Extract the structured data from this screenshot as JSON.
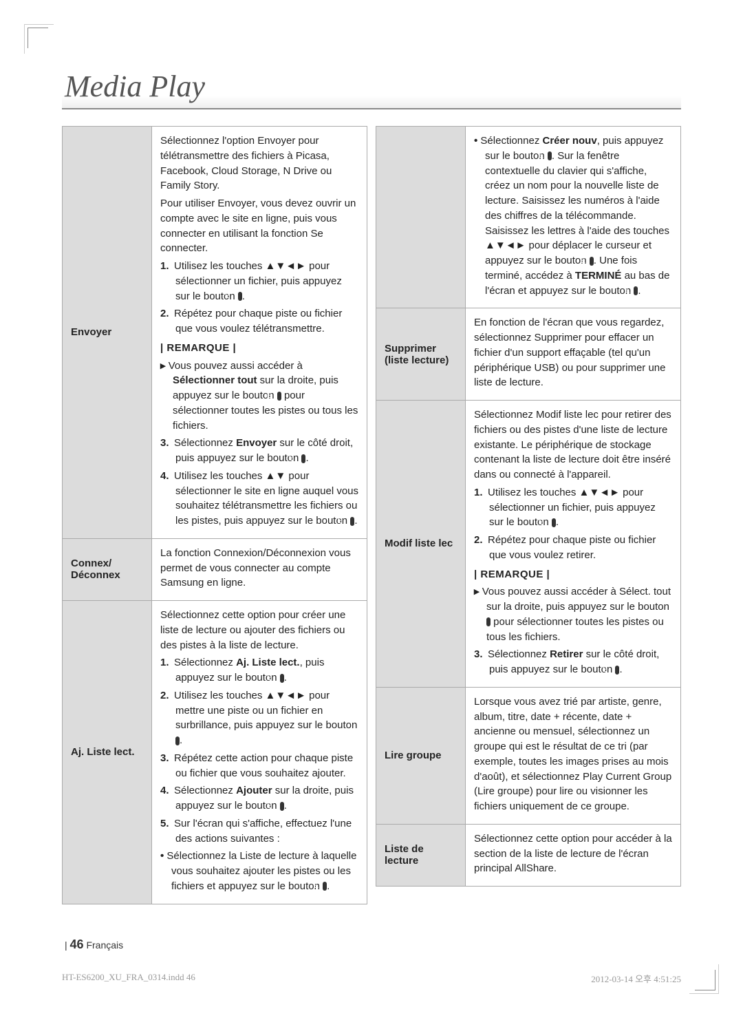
{
  "title": "Media Play",
  "footer": {
    "bar": "|",
    "page": "46",
    "lang": "Français"
  },
  "slug": {
    "file": "HT-ES6200_XU_FRA_0314.indd   46",
    "date": "2012-03-14   오후 4:51:25"
  },
  "labels": {
    "remarque": "| REMARQUE |"
  },
  "left": {
    "envoyer": {
      "label": "Envoyer",
      "p1": "Sélectionnez l'option Envoyer pour télétransmettre des fichiers à Picasa, Facebook, Cloud Storage, N Drive ou Family Story.",
      "p2": "Pour utiliser Envoyer, vous devez ouvrir un compte avec le site en ligne, puis vous connecter en utilisant la fonction Se connecter.",
      "s1a": "Utilisez les touches ▲▼◄► pour sélectionner un fichier, puis appuyez sur le bouton ",
      "s1b": ".",
      "s2": "Répétez pour chaque piste ou fichier que vous voulez télétransmettre.",
      "n1a": "Vous pouvez aussi accéder à ",
      "n1b": "Sélectionner tout",
      "n1c": " sur la droite, puis appuyez sur le bouton ",
      "n1d": " pour sélectionner toutes les pistes ou tous les fichiers.",
      "s3a": "Sélectionnez ",
      "s3b": "Envoyer",
      "s3c": " sur le côté droit, puis appuyez sur le bouton ",
      "s3d": ".",
      "s4a": "Utilisez les touches ▲▼ pour sélectionner le site en ligne auquel vous souhaitez télétransmettre les fichiers ou les pistes, puis appuyez sur le bouton ",
      "s4b": "."
    },
    "connex": {
      "label": "Connex/ Déconnex",
      "p1": "La fonction Connexion/Déconnexion vous permet de vous connecter au compte Samsung en ligne."
    },
    "ajliste": {
      "label": "Aj. Liste lect.",
      "p1": "Sélectionnez cette option pour créer une liste de lecture ou ajouter des fichiers ou des pistes à la liste de lecture.",
      "s1a": "Sélectionnez ",
      "s1b": "Aj. Liste lect.",
      "s1c": ", puis appuyez sur le bouton ",
      "s1d": ".",
      "s2a": "Utilisez les touches ▲▼◄► pour mettre une piste ou un fichier en surbrillance, puis appuyez sur le bouton ",
      "s2b": ".",
      "s3": "Répétez cette action pour chaque piste ou fichier que vous souhaitez ajouter.",
      "s4a": "Sélectionnez ",
      "s4b": "Ajouter",
      "s4c": " sur la droite, puis appuyez sur le bouton ",
      "s4d": ".",
      "s5": "Sur l'écran qui s'affiche, effectuez l'une des actions suivantes :",
      "b1a": "Sélectionnez la Liste de lecture à laquelle vous souhaitez ajouter les pistes ou les fichiers et appuyez sur le bouton ",
      "b1b": "."
    }
  },
  "right": {
    "creer": {
      "b1a": "Sélectionnez ",
      "b1b": "Créer nouv",
      "b1c": ", puis appuyez sur le bouton ",
      "b1d": ". Sur la fenêtre contextuelle du clavier qui s'affiche, créez un nom pour la nouvelle liste de lecture. Saisissez les numéros à l'aide des chiffres de la télécommande.  Saisissez les lettres à l'aide des touches ▲▼◄► pour déplacer le curseur et appuyez sur le bouton ",
      "b1e": ". Une fois terminé, accédez à ",
      "b1f": "TERMINÉ",
      "b1g": " au bas de l'écran et appuyez sur le bouton ",
      "b1h": "."
    },
    "supprimer": {
      "label": "Supprimer (liste lecture)",
      "p1": "En fonction de l'écran que vous regardez, sélectionnez Supprimer pour effacer un fichier d'un support effaçable (tel qu'un périphérique USB) ou pour supprimer une liste de lecture."
    },
    "modif": {
      "label": "Modif liste lec",
      "p1": "Sélectionnez Modif liste lec pour retirer des fichiers ou des pistes d'une liste de lecture existante. Le périphérique de stockage contenant la liste de lecture doit être inséré dans ou connecté à l'appareil.",
      "s1a": "Utilisez les touches ▲▼◄► pour sélectionner un fichier, puis appuyez sur le bouton ",
      "s1b": ".",
      "s2": "Répétez pour chaque piste ou fichier que vous voulez retirer.",
      "n1a": "Vous pouvez aussi accéder à Sélect. tout sur la droite, puis appuyez sur le bouton ",
      "n1b": " pour sélectionner toutes les pistes ou tous les fichiers.",
      "s3a": "Sélectionnez ",
      "s3b": "Retirer",
      "s3c": " sur le côté droit, puis appuyez sur le bouton ",
      "s3d": "."
    },
    "lire": {
      "label": "Lire groupe",
      "p1": "Lorsque vous avez trié par artiste, genre, album, titre, date + récente, date + ancienne ou mensuel, sélectionnez un groupe qui est le résultat de ce tri (par exemple, toutes les images prises au mois d'août), et sélectionnez Play Current Group (Lire groupe) pour lire ou visionner les fichiers uniquement de ce groupe."
    },
    "liste": {
      "label": "Liste de lecture",
      "p1": "Sélectionnez cette option pour accéder à la section de la liste de lecture de l'écran principal AllShare."
    }
  }
}
